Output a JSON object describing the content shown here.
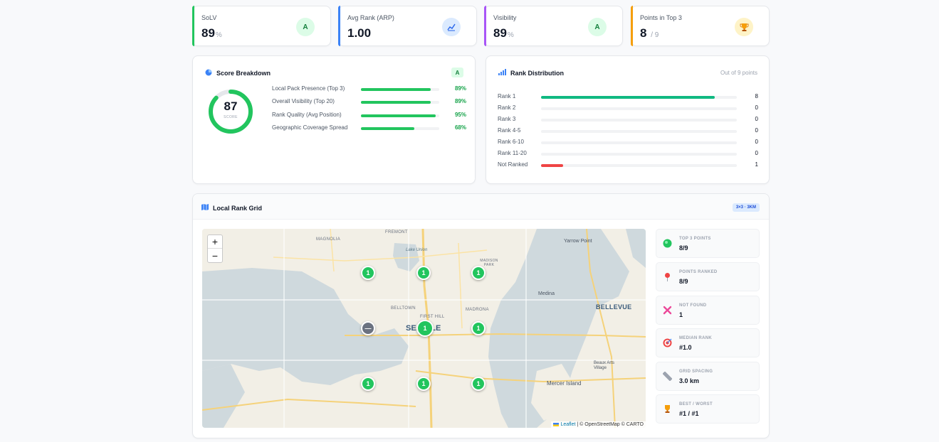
{
  "kpis": [
    {
      "label": "SoLV",
      "value": "89",
      "unit": "%",
      "badge": "A",
      "accent": "#22c55e"
    },
    {
      "label": "Avg Rank (ARP)",
      "value": "1.00",
      "unit": "",
      "badge": "chart-icon",
      "accent": "#3b82f6"
    },
    {
      "label": "Visibility",
      "value": "89",
      "unit": "%",
      "badge": "A",
      "accent": "#a855f7"
    },
    {
      "label": "Points in Top 3",
      "value": "8",
      "unit": "/ 9",
      "badge": "trophy-icon",
      "accent": "#f59e0b"
    }
  ],
  "score": {
    "title": "Score Breakdown",
    "grade": "A",
    "value": "87",
    "caption": "SCORE",
    "fraction": 0.87,
    "items": [
      {
        "label": "Local Pack Presence (Top 3)",
        "pct": "89%",
        "fraction": 0.89
      },
      {
        "label": "Overall Visibility (Top 20)",
        "pct": "89%",
        "fraction": 0.89
      },
      {
        "label": "Rank Quality (Avg Position)",
        "pct": "95%",
        "fraction": 0.95
      },
      {
        "label": "Geographic Coverage Spread",
        "pct": "68%",
        "fraction": 0.68
      }
    ]
  },
  "distribution": {
    "title": "Rank Distribution",
    "subtitle": "Out of 9 points",
    "rows": [
      {
        "label": "Rank 1",
        "count": "8",
        "fraction": 0.889,
        "color": "#10b981"
      },
      {
        "label": "Rank 2",
        "count": "0",
        "fraction": 0,
        "color": "#10b981"
      },
      {
        "label": "Rank 3",
        "count": "0",
        "fraction": 0,
        "color": "#10b981"
      },
      {
        "label": "Rank 4-5",
        "count": "0",
        "fraction": 0,
        "color": "#10b981"
      },
      {
        "label": "Rank 6-10",
        "count": "0",
        "fraction": 0,
        "color": "#10b981"
      },
      {
        "label": "Rank 11-20",
        "count": "0",
        "fraction": 0,
        "color": "#10b981"
      },
      {
        "label": "Not Ranked",
        "count": "1",
        "fraction": 0.111,
        "color": "#ef4444"
      }
    ]
  },
  "grid": {
    "title": "Local Rank Grid",
    "badge": "3×3 · 3KM",
    "map": {
      "zoom_in": "+",
      "zoom_out": "−",
      "place_labels": [
        "MAGNOLIA",
        "FREMONT",
        "Lake Union",
        "MADISON PARK",
        "Yarrow Point",
        "Medina",
        "BELLEVUE",
        "BELLTOWN",
        "FIRST HILL",
        "MADRONA",
        "SEATTLE",
        "Beaux Arts Village",
        "Mercer Island"
      ],
      "attribution_link": "Leaflet",
      "attribution_text": "| © OpenStreetMap © CARTO",
      "pins": [
        {
          "rank": "1",
          "status": "top3"
        },
        {
          "rank": "1",
          "status": "top3"
        },
        {
          "rank": "1",
          "status": "top3"
        },
        {
          "rank": "—",
          "status": "not-found"
        },
        {
          "rank": "1",
          "status": "top3"
        },
        {
          "rank": "1",
          "status": "top3"
        },
        {
          "rank": "1",
          "status": "top3"
        },
        {
          "rank": "1",
          "status": "top3"
        },
        {
          "rank": "1",
          "status": "top3"
        }
      ]
    },
    "stats": [
      {
        "label": "TOP 3 POINTS",
        "value": "8/9",
        "icon": "green-circle-icon"
      },
      {
        "label": "POINTS RANKED",
        "value": "8/9",
        "icon": "pin-icon"
      },
      {
        "label": "NOT FOUND",
        "value": "1",
        "icon": "cross-icon"
      },
      {
        "label": "MEDIAN RANK",
        "value": "#1.0",
        "icon": "target-icon"
      },
      {
        "label": "GRID SPACING",
        "value": "3.0 km",
        "icon": "ruler-icon"
      },
      {
        "label": "BEST / WORST",
        "value": "#1 / #1",
        "icon": "trophy-icon"
      }
    ]
  },
  "colors": {
    "green": "#22c55e",
    "red": "#ef4444",
    "gray_pin": "#6b7280",
    "badge_bg": "#dcfce7"
  }
}
